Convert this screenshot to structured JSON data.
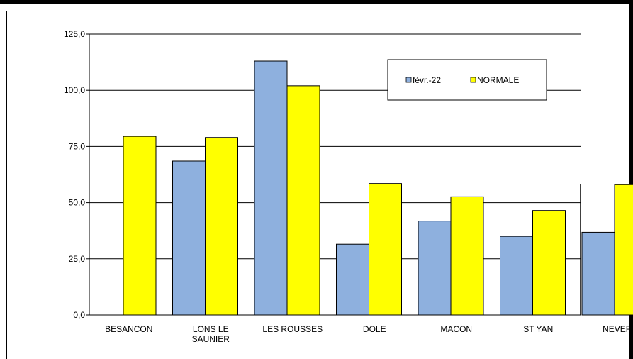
{
  "chart_data": {
    "type": "bar",
    "categories": [
      "BESANCON",
      "LONS LE SAUNIER",
      "LES ROUSSES",
      "DOLE",
      "MACON",
      "ST YAN",
      "NEVERS"
    ],
    "category_lines": [
      [
        "BESANCON"
      ],
      [
        "LONS LE",
        "SAUNIER"
      ],
      [
        "LES ROUSSES"
      ],
      [
        "DOLE"
      ],
      [
        "MACON"
      ],
      [
        "ST YAN"
      ],
      [
        "NEVERS"
      ]
    ],
    "series": [
      {
        "name": "févr.-22",
        "color": "#8EB0DE",
        "values": [
          0,
          68.5,
          113,
          31.5,
          41.8,
          35,
          36.8
        ]
      },
      {
        "name": "NORMALE",
        "color": "#FFFF00",
        "values": [
          79.5,
          79,
          102,
          58.5,
          52.6,
          46.5,
          58
        ]
      }
    ],
    "y_ticks": [
      "0,0",
      "25,0",
      "50,0",
      "75,0",
      "100,0",
      "125,0"
    ],
    "y_tick_values": [
      0,
      25,
      50,
      75,
      100,
      125
    ],
    "ylim": [
      0,
      125
    ],
    "grid": true,
    "legend_position": "top-right",
    "title": "",
    "xlabel": "",
    "ylabel": ""
  }
}
